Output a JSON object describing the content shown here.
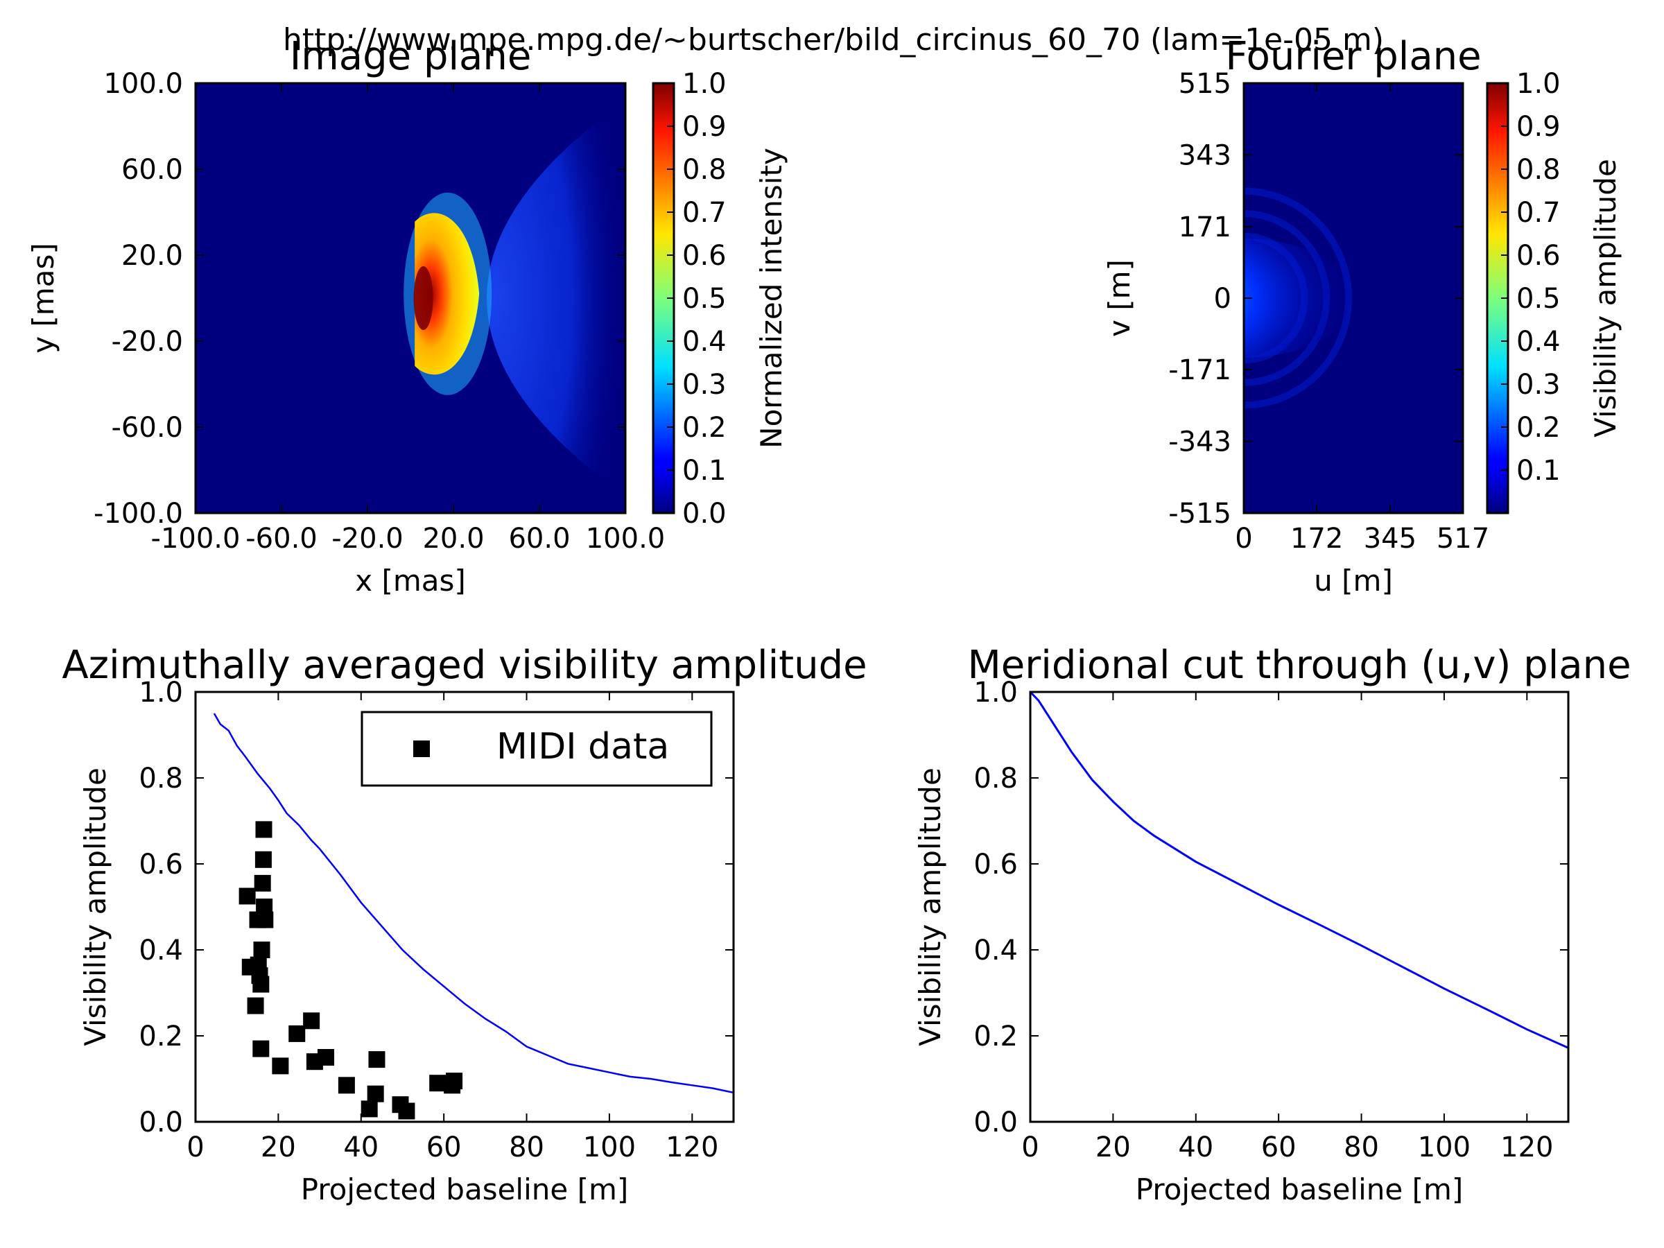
{
  "figure": {
    "suptitle": "http://www.mpe.mpg.de/~burtscher/bild_circinus_60_70 (lam=1e-05 m)"
  },
  "colors": {
    "line": "#0000ff",
    "marker": "#000000",
    "jet_dark_blue": "#00007f",
    "jet_red": "#7f0000"
  },
  "chart_data": [
    {
      "type": "heatmap",
      "title": "Image plane",
      "xlabel": "x [mas]",
      "ylabel": "y [mas]",
      "xlim": [
        -100,
        100
      ],
      "ylim": [
        -100,
        100
      ],
      "xticks": [
        "-100.0",
        "-60.0",
        "-20.0",
        "20.0",
        "60.0",
        "100.0"
      ],
      "yticks": [
        "100.0",
        "60.0",
        "20.0",
        "-20.0",
        "-60.0",
        "-100.0"
      ],
      "xtick_values": [
        -100,
        -60,
        -20,
        20,
        60,
        100
      ],
      "ytick_values": [
        100,
        60,
        20,
        -20,
        -60,
        -100
      ],
      "colormap": "jet",
      "colorbar": {
        "label": "Normalized intensity",
        "range": [
          0,
          1
        ],
        "ticks": [
          "1.0",
          "0.9",
          "0.8",
          "0.7",
          "0.6",
          "0.5",
          "0.4",
          "0.3",
          "0.2",
          "0.1",
          "0.0"
        ],
        "tick_values": [
          1.0,
          0.9,
          0.8,
          0.7,
          0.6,
          0.5,
          0.4,
          0.3,
          0.2,
          0.1,
          0.0
        ]
      },
      "features": [
        {
          "shape": "parabolic-halo",
          "vertex_x": 0,
          "vertex_y": 0,
          "opening": "right",
          "intensity": 0.15
        },
        {
          "shape": "blob",
          "x_range": [
            2,
            32
          ],
          "y_range": [
            -38,
            42
          ],
          "intensity": 0.7
        },
        {
          "shape": "peak",
          "x": 6,
          "y": 0,
          "intensity": 1.0
        }
      ]
    },
    {
      "type": "heatmap",
      "title": "Fourier plane",
      "xlabel": "u [m]",
      "ylabel": "v [m]",
      "xlim": [
        0,
        517
      ],
      "ylim": [
        -515,
        515
      ],
      "xticks": [
        "0",
        "172",
        "345",
        "517"
      ],
      "yticks": [
        "515",
        "343",
        "171",
        "0",
        "-171",
        "-343",
        "-515"
      ],
      "xtick_values": [
        0,
        172,
        345,
        517
      ],
      "ytick_values": [
        515,
        343,
        171,
        0,
        -171,
        -343,
        -515
      ],
      "colormap": "jet",
      "colorbar": {
        "label": "Visibility amplitude",
        "range": [
          0,
          1
        ],
        "ticks": [
          "1.0",
          "0.9",
          "0.8",
          "0.7",
          "0.6",
          "0.5",
          "0.4",
          "0.3",
          "0.2",
          "0.1"
        ],
        "tick_values": [
          1.0,
          0.9,
          0.8,
          0.7,
          0.6,
          0.5,
          0.4,
          0.3,
          0.2,
          0.1
        ]
      },
      "features": [
        {
          "shape": "central-peak",
          "u": 0,
          "v": 0,
          "intensity": 1.0
        },
        {
          "shape": "elliptical-lobe",
          "u_extent": 260,
          "v_extent": 150,
          "intensity": 0.2
        }
      ]
    },
    {
      "type": "scatter",
      "title": "Azimuthally averaged visibility amplitude",
      "xlabel": "Projected baseline [m]",
      "ylabel": "Visibility amplitude",
      "xlim": [
        0,
        130
      ],
      "ylim": [
        0,
        1
      ],
      "xticks": [
        "0",
        "20",
        "40",
        "60",
        "80",
        "100",
        "120"
      ],
      "yticks": [
        "0.0",
        "0.2",
        "0.4",
        "0.6",
        "0.8",
        "1.0"
      ],
      "xtick_values": [
        0,
        20,
        40,
        60,
        80,
        100,
        120
      ],
      "ytick_values": [
        0,
        0.2,
        0.4,
        0.6,
        0.8,
        1.0
      ],
      "legend": {
        "placement": "top-right",
        "entries": [
          "MIDI data"
        ]
      },
      "model_curve": {
        "x": [
          4.5,
          6,
          8,
          10,
          12,
          15,
          18,
          20,
          22,
          25,
          28,
          30,
          35,
          40,
          45,
          50,
          55,
          60,
          65,
          70,
          75,
          80,
          85,
          90,
          95,
          100,
          105,
          110,
          115,
          120,
          125,
          130
        ],
        "y": [
          0.95,
          0.925,
          0.91,
          0.875,
          0.85,
          0.81,
          0.775,
          0.748,
          0.718,
          0.69,
          0.655,
          0.635,
          0.575,
          0.51,
          0.455,
          0.4,
          0.355,
          0.315,
          0.275,
          0.24,
          0.21,
          0.175,
          0.155,
          0.135,
          0.125,
          0.115,
          0.105,
          0.1,
          0.092,
          0.085,
          0.078,
          0.068
        ]
      },
      "series": [
        {
          "name": "MIDI data",
          "x": [
            12.5,
            13.2,
            14.5,
            15.0,
            15.5,
            15.8,
            16.0,
            16.2,
            16.4,
            16.5,
            16.6,
            16.8,
            15.8,
            15.2,
            20.5,
            24.5,
            28.0,
            28.8,
            31.5,
            36.5,
            42.0,
            43.5,
            43.8,
            49.5,
            51.0,
            58.5,
            62.0,
            62.5
          ],
          "y": [
            0.525,
            0.36,
            0.27,
            0.47,
            0.34,
            0.17,
            0.4,
            0.555,
            0.61,
            0.68,
            0.5,
            0.47,
            0.32,
            0.365,
            0.13,
            0.205,
            0.235,
            0.14,
            0.15,
            0.085,
            0.03,
            0.065,
            0.145,
            0.04,
            0.025,
            0.09,
            0.085,
            0.095
          ]
        }
      ]
    },
    {
      "type": "line",
      "title": "Meridional cut through (u,v) plane",
      "xlabel": "Projected baseline [m]",
      "ylabel": "Visibility amplitude",
      "xlim": [
        0,
        130
      ],
      "ylim": [
        0,
        1
      ],
      "xticks": [
        "0",
        "20",
        "40",
        "60",
        "80",
        "100",
        "120"
      ],
      "yticks": [
        "0.0",
        "0.2",
        "0.4",
        "0.6",
        "0.8",
        "1.0"
      ],
      "xtick_values": [
        0,
        20,
        40,
        60,
        80,
        100,
        120
      ],
      "ytick_values": [
        0,
        0.2,
        0.4,
        0.6,
        0.8,
        1.0
      ],
      "series": [
        {
          "x": [
            0,
            2,
            5,
            8,
            10,
            15,
            20,
            25,
            30,
            40,
            50,
            60,
            70,
            80,
            90,
            100,
            110,
            120,
            130
          ],
          "y": [
            1.0,
            0.98,
            0.935,
            0.89,
            0.86,
            0.795,
            0.745,
            0.7,
            0.665,
            0.605,
            0.555,
            0.505,
            0.458,
            0.41,
            0.36,
            0.31,
            0.263,
            0.215,
            0.172
          ]
        }
      ]
    }
  ]
}
